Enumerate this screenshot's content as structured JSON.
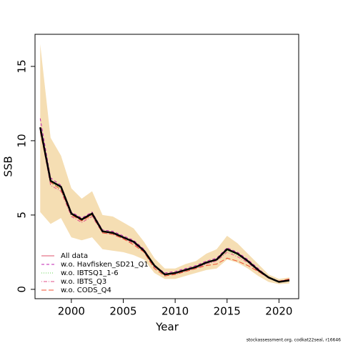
{
  "chart_data": {
    "type": "line",
    "x_label": "Year",
    "y_label": "SSB",
    "footer": "stockassessment.org, codkat22seal, r16646",
    "x": [
      1997,
      1998,
      1999,
      2000,
      2001,
      2002,
      2003,
      2004,
      2005,
      2006,
      2007,
      2008,
      2009,
      2010,
      2011,
      2012,
      2013,
      2014,
      2015,
      2016,
      2017,
      2018,
      2019,
      2020,
      2021
    ],
    "band": {
      "color": "#f5deb3",
      "upper": [
        16.5,
        10.2,
        9.0,
        6.8,
        6.1,
        6.6,
        5.0,
        4.9,
        4.5,
        4.1,
        3.2,
        2.1,
        1.4,
        1.4,
        1.7,
        1.9,
        2.4,
        2.7,
        3.6,
        3.1,
        2.4,
        1.7,
        1.0,
        0.7,
        0.8
      ],
      "lower": [
        5.2,
        4.4,
        4.8,
        3.5,
        3.3,
        3.5,
        2.7,
        2.6,
        2.5,
        2.3,
        2.0,
        1.1,
        0.7,
        0.7,
        0.9,
        1.1,
        1.3,
        1.4,
        2.0,
        1.8,
        1.4,
        0.9,
        0.5,
        0.35,
        0.4
      ]
    },
    "series": [
      {
        "name": "All data",
        "color": "#df536b",
        "line_color": "#000000",
        "dash": "solid",
        "values": [
          10.9,
          7.3,
          6.9,
          5.1,
          4.7,
          5.1,
          3.9,
          3.8,
          3.5,
          3.2,
          2.6,
          1.6,
          1.0,
          1.1,
          1.3,
          1.5,
          1.8,
          2.0,
          2.7,
          2.4,
          1.9,
          1.3,
          0.8,
          0.5,
          0.6
        ]
      },
      {
        "name": "w.o. Havfisken_SD21_Q1",
        "color": "#c020b0",
        "dash": "dashed",
        "values": [
          11.5,
          7.5,
          7.0,
          5.2,
          4.8,
          5.2,
          4.0,
          3.9,
          3.6,
          3.3,
          2.7,
          1.6,
          1.1,
          1.2,
          1.4,
          1.6,
          1.9,
          2.1,
          2.8,
          2.5,
          2.0,
          1.4,
          0.8,
          0.55,
          0.65
        ]
      },
      {
        "name": "w.o. IBTSQ1_1-6",
        "color": "#61d04f",
        "dash": "dotted",
        "values": [
          10.8,
          7.2,
          6.8,
          5.0,
          4.7,
          5.0,
          3.9,
          3.8,
          3.5,
          3.2,
          2.6,
          1.6,
          1.0,
          1.1,
          1.3,
          1.5,
          1.8,
          2.0,
          2.6,
          2.3,
          1.9,
          1.3,
          0.8,
          0.5,
          0.6
        ]
      },
      {
        "name": "w.o. IBTS_Q3",
        "color": "#e0508a",
        "dash": "dotdash",
        "values": [
          10.7,
          7.0,
          6.6,
          4.9,
          4.5,
          4.9,
          3.8,
          3.7,
          3.4,
          3.1,
          2.5,
          1.5,
          1.0,
          1.0,
          1.2,
          1.4,
          1.7,
          1.9,
          2.5,
          2.2,
          1.8,
          1.2,
          0.75,
          0.5,
          0.6
        ]
      },
      {
        "name": "w.o. CODS_Q4",
        "color": "#f05030",
        "dash": "longdash",
        "values": [
          10.6,
          7.2,
          6.7,
          5.0,
          4.6,
          5.0,
          3.8,
          3.7,
          3.4,
          3.0,
          2.5,
          1.4,
          0.9,
          1.0,
          1.2,
          1.4,
          1.6,
          1.7,
          2.1,
          1.9,
          1.6,
          1.2,
          0.8,
          0.55,
          0.7
        ]
      }
    ],
    "xlim": [
      1996.5,
      2021.9
    ],
    "ylim": [
      -0.63,
      17.16
    ],
    "xticks": [
      2000,
      2005,
      2010,
      2015,
      2020
    ],
    "yticks": [
      0,
      5,
      10,
      15
    ],
    "legend": "bottom-left"
  }
}
